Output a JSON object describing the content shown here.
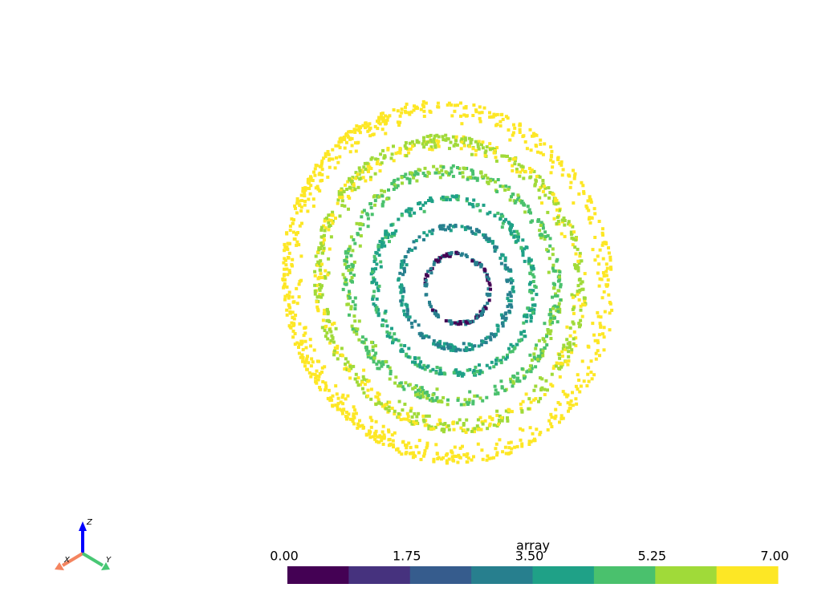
{
  "scalar_bar": {
    "title": "array",
    "range": [
      0,
      7
    ],
    "ticks": [
      {
        "value": 0,
        "label": "0.00"
      },
      {
        "value": 1.75,
        "label": "1.75"
      },
      {
        "value": 3.5,
        "label": "3.50"
      },
      {
        "value": 5.25,
        "label": "5.25"
      },
      {
        "value": 7,
        "label": "7.00"
      }
    ],
    "colors": [
      "#440154",
      "#46327e",
      "#365c8d",
      "#277f8e",
      "#1fa187",
      "#4ac16d",
      "#a0da39",
      "#fde725"
    ]
  },
  "axes": {
    "x": "X",
    "y": "Y",
    "z": "Z"
  }
}
